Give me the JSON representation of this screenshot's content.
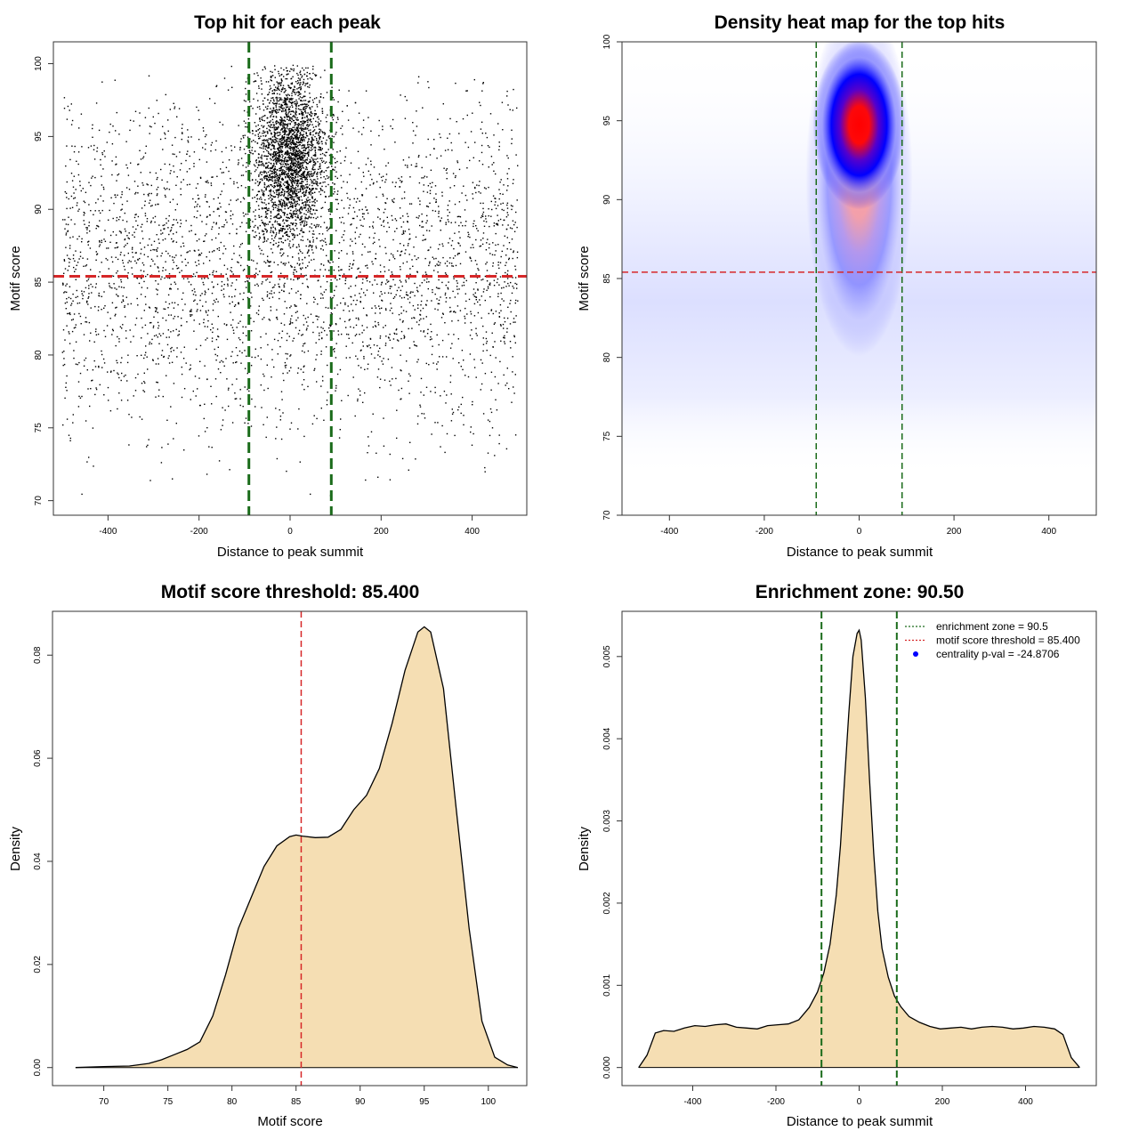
{
  "chart_data": [
    {
      "type": "scatter",
      "title": "Top hit for each peak",
      "xlabel": "Distance to peak summit",
      "ylabel": "Motif score",
      "xlim": [
        -520,
        520
      ],
      "ylim": [
        69,
        101.5
      ],
      "xticks": [
        -400,
        -200,
        0,
        200,
        400
      ],
      "yticks": [
        70,
        75,
        80,
        85,
        90,
        95,
        100
      ],
      "tick_labels_x": [
        "-400",
        "-200",
        "0",
        "200",
        "400"
      ],
      "tick_labels_y": [
        "70",
        "75",
        "80",
        "85",
        "90",
        "95",
        "100"
      ],
      "enrichment_zone": [
        -90.5,
        90.5
      ],
      "threshold": 85.4,
      "point_summary": {
        "background": {
          "n": 3300,
          "x_range": [
            -500,
            500
          ],
          "y_mean": 86,
          "y_sd": 5.5
        },
        "central": {
          "n": 3000,
          "x_mean": 0,
          "x_sd": 38,
          "y_mean": 93.5,
          "y_sd": 3
        }
      },
      "colors": {
        "points": "#000000",
        "zone": "#1a6b1a",
        "threshold": "#d62728"
      }
    },
    {
      "type": "heatmap",
      "title": "Density heat map for the top hits",
      "xlabel": "Distance to peak summit",
      "ylabel": "Motif score",
      "xlim": [
        -500,
        500
      ],
      "ylim": [
        70,
        100
      ],
      "xticks": [
        -400,
        -200,
        0,
        200,
        400
      ],
      "yticks": [
        70,
        75,
        80,
        85,
        90,
        95,
        100
      ],
      "tick_labels_x": [
        "-400",
        "-200",
        "0",
        "200",
        "400"
      ],
      "tick_labels_y": [
        "70",
        "75",
        "80",
        "85",
        "90",
        "95",
        "100"
      ],
      "enrichment_zone": [
        -90.5,
        90.5
      ],
      "threshold": 85.4,
      "hotspot": {
        "x": 0,
        "y": 95.3
      },
      "colormap": [
        "#ffffff",
        "#0000ff",
        "#ff0000"
      ],
      "colors": {
        "zone": "#1a6b1a",
        "threshold": "#d62728"
      }
    },
    {
      "type": "area",
      "title": "Motif score threshold: 85.400",
      "xlabel": "Motif score",
      "ylabel": "Density",
      "xlim": [
        66,
        103
      ],
      "ylim": [
        -0.0035,
        0.0885
      ],
      "xticks": [
        70,
        75,
        80,
        85,
        90,
        95,
        100
      ],
      "yticks": [
        0.0,
        0.02,
        0.04,
        0.06,
        0.08
      ],
      "tick_labels_x": [
        "70",
        "75",
        "80",
        "85",
        "90",
        "95",
        "100"
      ],
      "tick_labels_y": [
        "0.00",
        "0.02",
        "0.04",
        "0.06",
        "0.08"
      ],
      "threshold": 85.4,
      "x": [
        67.8,
        70,
        72,
        73.5,
        74.5,
        75.5,
        76.5,
        77.5,
        78.5,
        79.5,
        80.5,
        81.5,
        82.5,
        83.5,
        84.5,
        85,
        85.5,
        86.5,
        87.5,
        88.5,
        89.5,
        90.5,
        91.5,
        92.5,
        93.5,
        94.5,
        95,
        95.5,
        96.5,
        97.5,
        98.5,
        99.5,
        100.5,
        101.5,
        102.3
      ],
      "y": [
        0.0,
        0.0002,
        0.0003,
        0.0008,
        0.0015,
        0.0025,
        0.0035,
        0.005,
        0.01,
        0.018,
        0.027,
        0.033,
        0.039,
        0.043,
        0.0448,
        0.0451,
        0.0449,
        0.0446,
        0.0447,
        0.0462,
        0.05,
        0.0528,
        0.058,
        0.0668,
        0.077,
        0.0845,
        0.0855,
        0.0845,
        0.0735,
        0.05,
        0.027,
        0.009,
        0.002,
        0.0005,
        0.0
      ],
      "colors": {
        "fill": "#f5deb3",
        "line": "#000000",
        "threshold": "#d62728"
      }
    },
    {
      "type": "area",
      "title": "Enrichment zone: 90.50",
      "xlabel": "Distance to peak summit",
      "ylabel": "Density",
      "xlim": [
        -570,
        570
      ],
      "ylim": [
        -0.00022,
        0.00555
      ],
      "xticks": [
        -400,
        -200,
        0,
        200,
        400
      ],
      "yticks": [
        0.0,
        0.001,
        0.002,
        0.003,
        0.004,
        0.005
      ],
      "tick_labels_x": [
        "-400",
        "-200",
        "0",
        "200",
        "400"
      ],
      "tick_labels_y": [
        "0.000",
        "0.001",
        "0.002",
        "0.003",
        "0.004",
        "0.005"
      ],
      "enrichment_zone": [
        -90.5,
        90.5
      ],
      "x": [
        -530,
        -510,
        -490,
        -470,
        -445,
        -420,
        -395,
        -370,
        -345,
        -320,
        -295,
        -270,
        -245,
        -220,
        -195,
        -170,
        -145,
        -120,
        -100,
        -85,
        -70,
        -55,
        -45,
        -35,
        -25,
        -15,
        -5,
        0,
        5,
        15,
        25,
        35,
        45,
        55,
        70,
        85,
        100,
        120,
        145,
        170,
        195,
        220,
        245,
        270,
        295,
        320,
        345,
        370,
        395,
        420,
        445,
        470,
        490,
        510,
        530
      ],
      "y": [
        0.0,
        0.00015,
        0.00042,
        0.00045,
        0.00044,
        0.00048,
        0.00051,
        0.0005,
        0.00052,
        0.00053,
        0.00049,
        0.00048,
        0.00047,
        0.00051,
        0.00052,
        0.00053,
        0.00058,
        0.00073,
        0.00092,
        0.00115,
        0.0015,
        0.0021,
        0.0027,
        0.0035,
        0.0043,
        0.005,
        0.00528,
        0.00532,
        0.0052,
        0.0045,
        0.0035,
        0.0026,
        0.0019,
        0.00145,
        0.0011,
        0.00087,
        0.00074,
        0.00062,
        0.00055,
        0.0005,
        0.00047,
        0.00048,
        0.00049,
        0.00047,
        0.00049,
        0.0005,
        0.00049,
        0.00047,
        0.00048,
        0.0005,
        0.00049,
        0.00047,
        0.0004,
        0.00012,
        0.0
      ],
      "legend": [
        {
          "label": "enrichment zone = 90.5",
          "style": "dotted-line",
          "color": "#1a6b1a"
        },
        {
          "label": "motif score threshold = 85.400",
          "style": "dotted-line",
          "color": "#d62728"
        },
        {
          "label": "centrality p-val = -24.8706",
          "style": "point",
          "color": "#0000ff"
        }
      ],
      "legend_position": "top-right",
      "colors": {
        "fill": "#f5deb3",
        "line": "#000000",
        "zone": "#1a6b1a"
      }
    }
  ]
}
